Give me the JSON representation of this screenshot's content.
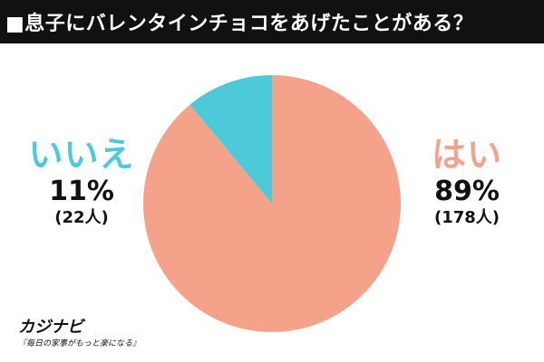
{
  "title": "■息子にバレンタインチョコをあげたことがある？",
  "colors": {
    "yes": "#f4a38a",
    "no": "#4dc9d9",
    "title_bg": "#111111"
  },
  "chart_data": {
    "type": "pie",
    "title": "■息子にバレンタインチョコをあげたことがある？",
    "slices": [
      {
        "label": "はい",
        "percent": "89%",
        "count": "(178人)",
        "value": 178,
        "color": "#f4a38a"
      },
      {
        "label": "いいえ",
        "percent": "11%",
        "count": "(22人)",
        "value": 22,
        "color": "#4dc9d9"
      }
    ]
  },
  "labels": {
    "yes": {
      "category": "はい",
      "percent": "89%",
      "count": "(178人)"
    },
    "no": {
      "category": "いいえ",
      "percent": "11%",
      "count": "(22人)"
    }
  },
  "logo": {
    "name": "カジナビ",
    "tagline": "『毎日の家事がもっと楽になる』"
  }
}
